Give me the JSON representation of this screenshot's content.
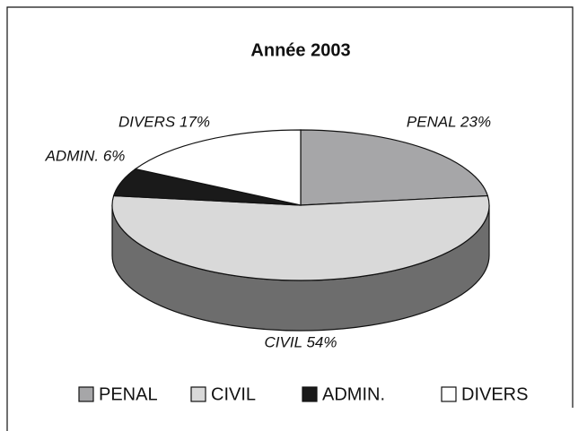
{
  "chart_data": {
    "type": "pie3d",
    "title": "Année 2003",
    "categories": [
      "PENAL",
      "CIVIL",
      "ADMIN.",
      "DIVERS"
    ],
    "values": [
      23,
      54,
      6,
      17
    ],
    "value_labels": [
      "PENAL 23%",
      "CIVIL 54%",
      "ADMIN. 6%",
      "DIVERS 17%"
    ],
    "colors": [
      "#a6a6a8",
      "#d9d9d9",
      "#1a1a1a",
      "#ffffff"
    ],
    "legend": "bottom"
  }
}
